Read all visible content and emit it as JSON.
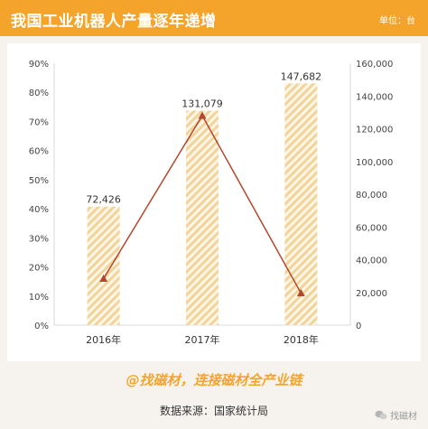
{
  "header": {
    "title": "我国工业机器人产量逐年递增",
    "unit": "单位：台"
  },
  "footer": {
    "slogan": "@找磁材，连接磁材全产业链",
    "source": "数据来源：国家统计局",
    "wechat_account": "找磁材"
  },
  "colors": {
    "header_bg": "#f4a42a",
    "bar_stripe": "#f1d49a",
    "line": "#b4472b"
  },
  "chart_data": {
    "type": "bar",
    "categories": [
      "2016年",
      "2017年",
      "2018年"
    ],
    "series": [
      {
        "type": "bar",
        "axis": "right",
        "values": [
          72426,
          131079,
          147682
        ],
        "labels": [
          "72,426",
          "131,079",
          "147,682"
        ]
      },
      {
        "type": "line",
        "axis": "left",
        "values": [
          0.16,
          0.72,
          0.11
        ]
      }
    ],
    "left_axis": {
      "ylim": [
        0,
        0.9
      ],
      "ticks": [
        "0%",
        "10%",
        "20%",
        "30%",
        "40%",
        "50%",
        "60%",
        "70%",
        "80%",
        "90%"
      ]
    },
    "right_axis": {
      "ylim": [
        0,
        160000
      ],
      "ticks": [
        "0",
        "20,000",
        "40,000",
        "60,000",
        "80,000",
        "100,000",
        "120,000",
        "140,000",
        "160,000"
      ]
    },
    "grid": false
  }
}
